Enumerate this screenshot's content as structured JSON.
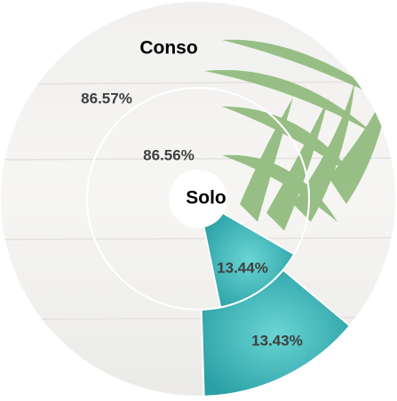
{
  "chart_data": {
    "type": "pie",
    "series": [
      {
        "name": "Conso",
        "values": [
          86.57,
          13.43
        ],
        "value_labels": [
          "86.57%",
          "13.43%"
        ],
        "colors": [
          "#ffffff",
          "#2ab3b5"
        ]
      },
      {
        "name": "Solo",
        "values": [
          86.56,
          13.44
        ],
        "value_labels": [
          "86.56%",
          "13.44%"
        ],
        "colors": [
          "#ffffff",
          "#2ab3b5"
        ]
      }
    ]
  }
}
